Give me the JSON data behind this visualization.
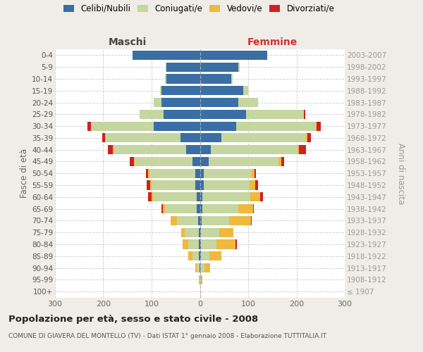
{
  "age_groups": [
    "100+",
    "95-99",
    "90-94",
    "85-89",
    "80-84",
    "75-79",
    "70-74",
    "65-69",
    "60-64",
    "55-59",
    "50-54",
    "45-49",
    "40-44",
    "35-39",
    "30-34",
    "25-29",
    "20-24",
    "15-19",
    "10-14",
    "5-9",
    "0-4"
  ],
  "birth_years": [
    "≤ 1907",
    "1908-1912",
    "1913-1917",
    "1918-1922",
    "1923-1927",
    "1928-1932",
    "1933-1937",
    "1938-1942",
    "1943-1947",
    "1948-1952",
    "1953-1957",
    "1958-1962",
    "1963-1967",
    "1968-1972",
    "1973-1977",
    "1978-1982",
    "1983-1987",
    "1988-1992",
    "1993-1997",
    "1998-2002",
    "2003-2007"
  ],
  "male_celibi": [
    0,
    0,
    1,
    2,
    2,
    2,
    3,
    7,
    7,
    10,
    10,
    15,
    28,
    40,
    95,
    75,
    80,
    80,
    70,
    70,
    140
  ],
  "male_coniugati": [
    0,
    1,
    5,
    14,
    22,
    30,
    45,
    65,
    90,
    90,
    95,
    120,
    150,
    155,
    130,
    50,
    15,
    3,
    2,
    1,
    0
  ],
  "male_vedovi": [
    0,
    1,
    4,
    8,
    12,
    7,
    12,
    5,
    3,
    3,
    2,
    2,
    2,
    2,
    1,
    0,
    0,
    0,
    0,
    0,
    0
  ],
  "male_divorziati": [
    0,
    0,
    0,
    0,
    0,
    0,
    0,
    2,
    8,
    7,
    5,
    8,
    10,
    5,
    7,
    0,
    0,
    0,
    0,
    0,
    0
  ],
  "female_celibi": [
    0,
    0,
    1,
    2,
    2,
    2,
    3,
    5,
    5,
    8,
    8,
    18,
    22,
    45,
    75,
    95,
    80,
    90,
    65,
    80,
    140
  ],
  "female_coniugati": [
    0,
    2,
    8,
    18,
    32,
    38,
    58,
    75,
    100,
    95,
    100,
    145,
    180,
    175,
    165,
    120,
    40,
    10,
    3,
    2,
    0
  ],
  "female_vedovi": [
    1,
    3,
    12,
    25,
    40,
    30,
    45,
    30,
    20,
    12,
    5,
    5,
    3,
    2,
    1,
    0,
    0,
    0,
    0,
    0,
    0
  ],
  "female_divorziati": [
    0,
    0,
    0,
    0,
    2,
    0,
    2,
    2,
    5,
    5,
    3,
    7,
    15,
    8,
    10,
    3,
    0,
    0,
    0,
    0,
    0
  ],
  "colors": {
    "celibi": "#3a6ea5",
    "coniugati": "#c5d6a0",
    "vedovi": "#f0b83f",
    "divorziati": "#cc2222"
  },
  "title": "Popolazione per età, sesso e stato civile - 2008",
  "subtitle": "COMUNE DI GIAVERA DEL MONTELLO (TV) - Dati ISTAT 1° gennaio 2008 - Elaborazione TUTTITALIA.IT",
  "xlabel_left": "Maschi",
  "xlabel_right": "Femmine",
  "ylabel_left": "Fasce di età",
  "ylabel_right": "Anni di nascita",
  "xlim": 300,
  "bg_color": "#f0ede8",
  "plot_bg": "#ffffff"
}
